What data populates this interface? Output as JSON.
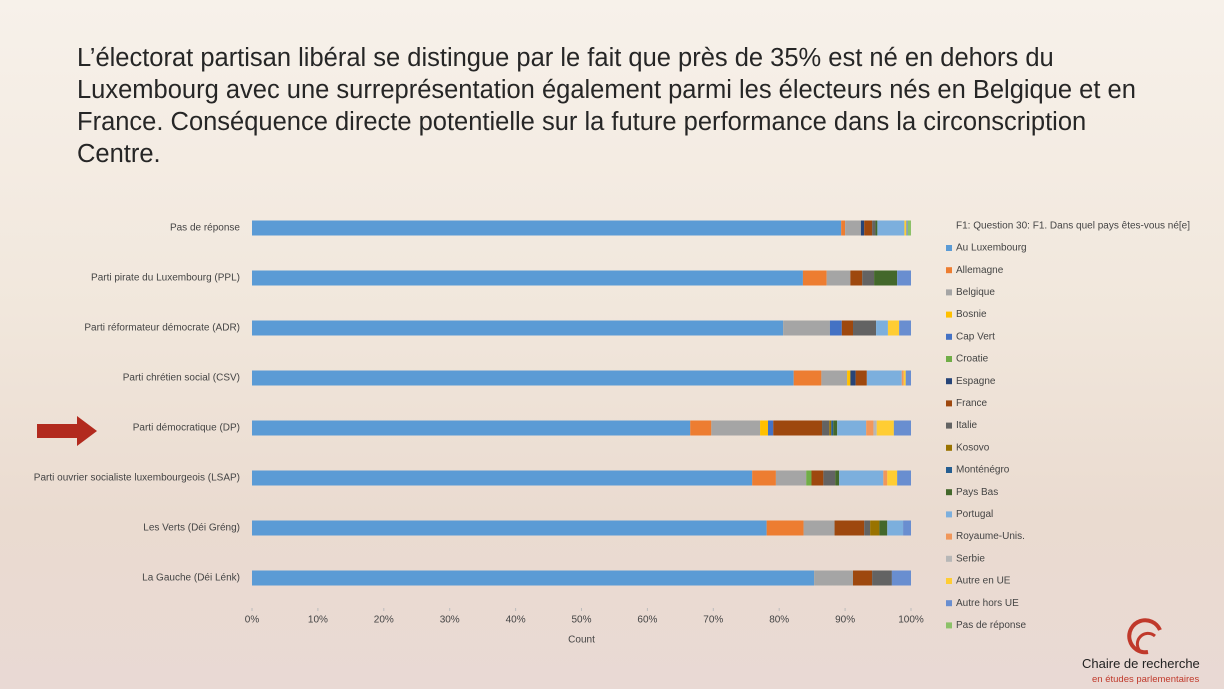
{
  "title": "L’électorat partisan libéral se distingue par le fait que près de 35% est né en dehors du Luxembourg avec une surreprésentation également parmi les électeurs nés en Belgique et en France. Conséquence directe potentielle sur la future performance dans la circonscription Centre.",
  "logo": {
    "name": "Chaire de recherche",
    "subtitle": "en études parlementaires"
  },
  "chart_data": {
    "type": "stacked-barh",
    "xlabel": "Count",
    "legend_title": "F1: Question 30: F1. Dans quel pays êtes-vous né[e]",
    "legend": "right",
    "categories": [
      "Pas de réponse",
      "Parti pirate du Luxembourg (PPL)",
      "Parti réformateur démocrate (ADR)",
      "Parti chrétien social (CSV)",
      "Parti démocratique (DP)",
      "Parti ouvrier socialiste luxembourgeois (LSAP)",
      "Les Verts (Déi Gréng)",
      "La Gauche (Déi Lénk)"
    ],
    "xlim": [
      0,
      100
    ],
    "xticks": [
      {
        "value": 0,
        "label": "0%"
      },
      {
        "value": 10,
        "label": "10%"
      },
      {
        "value": 20,
        "label": "20%"
      },
      {
        "value": 30,
        "label": "30%"
      },
      {
        "value": 40,
        "label": "40%"
      },
      {
        "value": 50,
        "label": "50%"
      },
      {
        "value": 60,
        "label": "60%"
      },
      {
        "value": 70,
        "label": "70%"
      },
      {
        "value": 80,
        "label": "80%"
      },
      {
        "value": 90,
        "label": "90%"
      },
      {
        "value": 100,
        "label": "100%"
      }
    ],
    "series": [
      {
        "name": "Au Luxembourg",
        "color": "#5b9bd5",
        "values": [
          89.4,
          83.6,
          80.6,
          82.2,
          66.5,
          75.9,
          78.1,
          85.3
        ]
      },
      {
        "name": "Allemagne",
        "color": "#ed7d31",
        "values": [
          0.6,
          3.6,
          0,
          4.2,
          3.2,
          3.6,
          5.6,
          0
        ]
      },
      {
        "name": "Belgique",
        "color": "#a5a5a5",
        "values": [
          2.4,
          3.6,
          7.1,
          3.9,
          7.4,
          4.6,
          4.7,
          5.9
        ]
      },
      {
        "name": "Bosnie",
        "color": "#ffc000",
        "values": [
          0,
          0,
          0,
          0.5,
          1.2,
          0,
          0,
          0
        ]
      },
      {
        "name": "Cap Vert",
        "color": "#4472c4",
        "values": [
          0,
          0,
          1.8,
          0,
          0.8,
          0,
          0,
          0
        ]
      },
      {
        "name": "Croatie",
        "color": "#70ad47",
        "values": [
          0,
          0,
          0,
          0,
          0,
          0.8,
          0,
          0
        ]
      },
      {
        "name": "Espagne",
        "color": "#264478",
        "values": [
          0.5,
          0,
          0,
          0.8,
          0,
          0,
          0,
          0
        ]
      },
      {
        "name": "France",
        "color": "#9e480e",
        "values": [
          1.2,
          1.8,
          1.7,
          1.7,
          7.4,
          1.8,
          4.5,
          2.9
        ]
      },
      {
        "name": "Italie",
        "color": "#636363",
        "values": [
          0.5,
          1.8,
          3.5,
          0,
          1.1,
          1.8,
          0.9,
          3.0
        ]
      },
      {
        "name": "Kosovo",
        "color": "#997300",
        "values": [
          0,
          0,
          0,
          0,
          0.3,
          0,
          1.4,
          0
        ]
      },
      {
        "name": "Monténégro",
        "color": "#255e91",
        "values": [
          0,
          0,
          0,
          0,
          0.3,
          0,
          0,
          0
        ]
      },
      {
        "name": "Pays Bas",
        "color": "#43682b",
        "values": [
          0.3,
          3.5,
          0,
          0,
          0.6,
          0.6,
          1.2,
          0
        ]
      },
      {
        "name": "Portugal",
        "color": "#7cafdd",
        "values": [
          4.1,
          0,
          1.8,
          5.3,
          4.4,
          6.7,
          2.4,
          0
        ]
      },
      {
        "name": "Royaume-Unis.",
        "color": "#f1975a",
        "values": [
          0,
          0,
          0,
          0.3,
          1.1,
          0.6,
          0,
          0
        ]
      },
      {
        "name": "Serbie",
        "color": "#b7b7b7",
        "values": [
          0,
          0,
          0,
          0,
          0.5,
          0,
          0,
          0
        ]
      },
      {
        "name": "Autre en UE",
        "color": "#ffcd33",
        "values": [
          0.3,
          0,
          1.7,
          0.3,
          2.6,
          1.5,
          0,
          0
        ]
      },
      {
        "name": "Autre hors UE",
        "color": "#698ed0",
        "values": [
          0.2,
          2.1,
          1.8,
          0.8,
          2.6,
          2.1,
          1.2,
          2.9
        ]
      },
      {
        "name": "Pas de réponse",
        "color": "#8cc168",
        "values": [
          0.5,
          0,
          0,
          0,
          0,
          0,
          0,
          0
        ]
      }
    ]
  }
}
